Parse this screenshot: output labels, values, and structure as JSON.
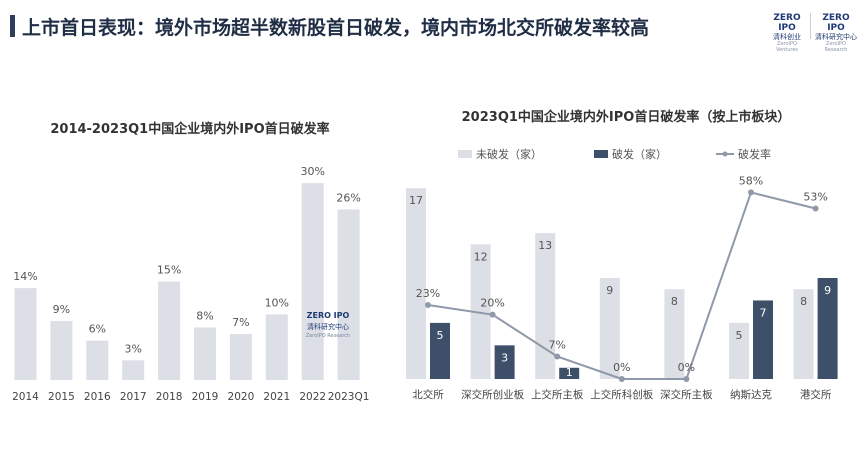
{
  "header": {
    "title": "上市首日表现：境外市场超半数新股首日破发，境内市场北交所破发率较高",
    "logo_left": {
      "line1": "ZERO IPO",
      "line2": "清科创业",
      "line3": "ZeroIPO Ventures"
    },
    "logo_right": {
      "line1": "ZERO IPO",
      "line2": "清科研究中心",
      "line3": "ZeroIPO Research"
    }
  },
  "colors": {
    "bar_light": "#dcdfe6",
    "bar_dark": "#3e5069",
    "line": "#8f99a8",
    "title": "#1f2d45"
  },
  "chart_data": [
    {
      "type": "bar",
      "title": "2014-2023Q1中国企业境内外IPO首日破发率",
      "categories": [
        "2014",
        "2015",
        "2016",
        "2017",
        "2018",
        "2019",
        "2020",
        "2021",
        "2022",
        "2023Q1"
      ],
      "values": [
        14,
        9,
        6,
        3,
        15,
        8,
        7,
        10,
        30,
        26
      ],
      "value_labels": [
        "14%",
        "9%",
        "6%",
        "3%",
        "15%",
        "8%",
        "7%",
        "10%",
        "30%",
        "26%"
      ],
      "unit": "%",
      "ylim": [
        0,
        32
      ],
      "grid": false,
      "watermark": {
        "line1": "ZERO IPO",
        "line2": "清科研究中心",
        "line3": "ZeroIPO Research"
      }
    },
    {
      "type": "bar+line",
      "title": "2023Q1中国企业境内外IPO首日破发率（按上市板块）",
      "categories": [
        "北交所",
        "深交所创业板",
        "上交所主板",
        "上交所科创板",
        "深交所主板",
        "纳斯达克",
        "港交所"
      ],
      "legend_position": "top",
      "series": [
        {
          "name": "未破发（家）",
          "kind": "bar",
          "values": [
            17,
            12,
            13,
            9,
            8,
            5,
            8
          ]
        },
        {
          "name": "破发（家）",
          "kind": "bar",
          "values": [
            5,
            3,
            1,
            0,
            0,
            7,
            9
          ]
        },
        {
          "name": "破发率",
          "kind": "line",
          "values": [
            23,
            20,
            7,
            0,
            0,
            58,
            53
          ],
          "labels": [
            "23%",
            "20%",
            "7%",
            "0%",
            "0%",
            "58%",
            "53%"
          ]
        }
      ],
      "ylim_bars": [
        0,
        18
      ],
      "ylim_rate": [
        0,
        60
      ],
      "grid": false
    }
  ]
}
